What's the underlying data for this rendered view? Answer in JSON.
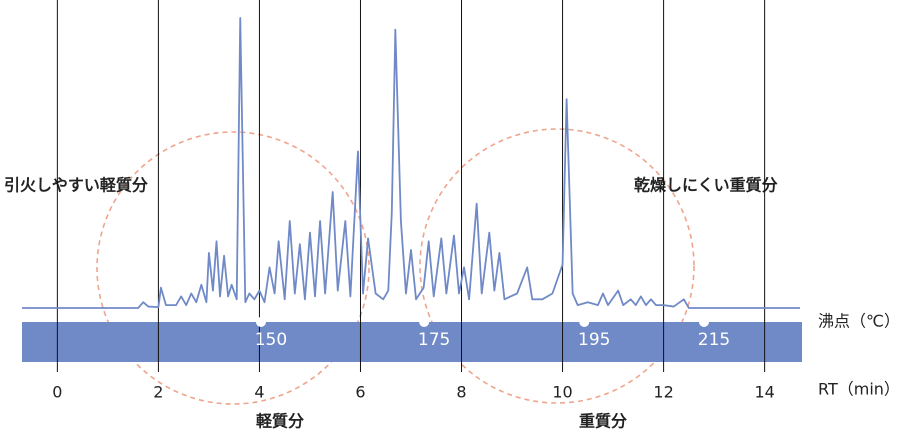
{
  "chart_data": {
    "type": "line",
    "x_label": "RT（min）",
    "boiling_label": "沸点（℃）",
    "xlim": [
      -0.7,
      14.7
    ],
    "xticks": [
      0,
      2,
      4,
      6,
      8,
      10,
      12,
      14
    ],
    "ylim": [
      0,
      100
    ],
    "grid": true,
    "series": [
      {
        "color": "#7089c7",
        "x": [
          -0.7,
          1.6,
          1.7,
          1.8,
          2.0,
          2.05,
          2.15,
          2.35,
          2.45,
          2.55,
          2.65,
          2.75,
          2.85,
          2.95,
          3.0,
          3.08,
          3.15,
          3.22,
          3.3,
          3.38,
          3.45,
          3.55,
          3.62,
          3.72,
          3.8,
          3.9,
          4.0,
          4.1,
          4.2,
          4.3,
          4.38,
          4.5,
          4.6,
          4.7,
          4.8,
          4.9,
          5.0,
          5.1,
          5.2,
          5.3,
          5.45,
          5.55,
          5.7,
          5.8,
          5.95,
          6.05,
          6.15,
          6.3,
          6.45,
          6.55,
          6.62,
          6.69,
          6.8,
          6.9,
          7.0,
          7.1,
          7.25,
          7.35,
          7.45,
          7.6,
          7.7,
          7.85,
          7.95,
          8.05,
          8.15,
          8.3,
          8.4,
          8.55,
          8.65,
          8.75,
          8.85,
          9.1,
          9.3,
          9.4,
          9.6,
          9.8,
          10.0,
          10.08,
          10.2,
          10.3,
          10.5,
          10.7,
          10.8,
          10.9,
          11.1,
          11.2,
          11.35,
          11.45,
          11.55,
          11.65,
          11.75,
          11.85,
          12.0,
          12.2,
          12.4,
          12.5,
          14.7
        ],
        "values": [
          0,
          0,
          2,
          0.5,
          0.3,
          7,
          1,
          1,
          4,
          1,
          5,
          2,
          8,
          2,
          19,
          6,
          23,
          4,
          18,
          4,
          8,
          3,
          100,
          2,
          5,
          3,
          6,
          2,
          14,
          5,
          23,
          3,
          30,
          5,
          22,
          3,
          26,
          4,
          30,
          5,
          40,
          6,
          30,
          4,
          54,
          5,
          24,
          5,
          3,
          6,
          33,
          96,
          30,
          5,
          20,
          3,
          7,
          23,
          4,
          24,
          5,
          25,
          5,
          14,
          3,
          36,
          5,
          26,
          6,
          19,
          3,
          5,
          14,
          3,
          3,
          5,
          15,
          72,
          5,
          1,
          2,
          1,
          5,
          1,
          6,
          1,
          3,
          1,
          4,
          1,
          3,
          1,
          1,
          0.5,
          3,
          0,
          0
        ]
      }
    ],
    "boiling_points": {
      "color": "#7089c7",
      "x": [
        4.03,
        7.26,
        10.43,
        12.8
      ],
      "values": [
        150,
        175,
        195,
        215
      ]
    },
    "annotations": [
      "引火しやすい軽質分",
      "乾燥しにくい重質分",
      "軽質分",
      "重質分"
    ]
  }
}
